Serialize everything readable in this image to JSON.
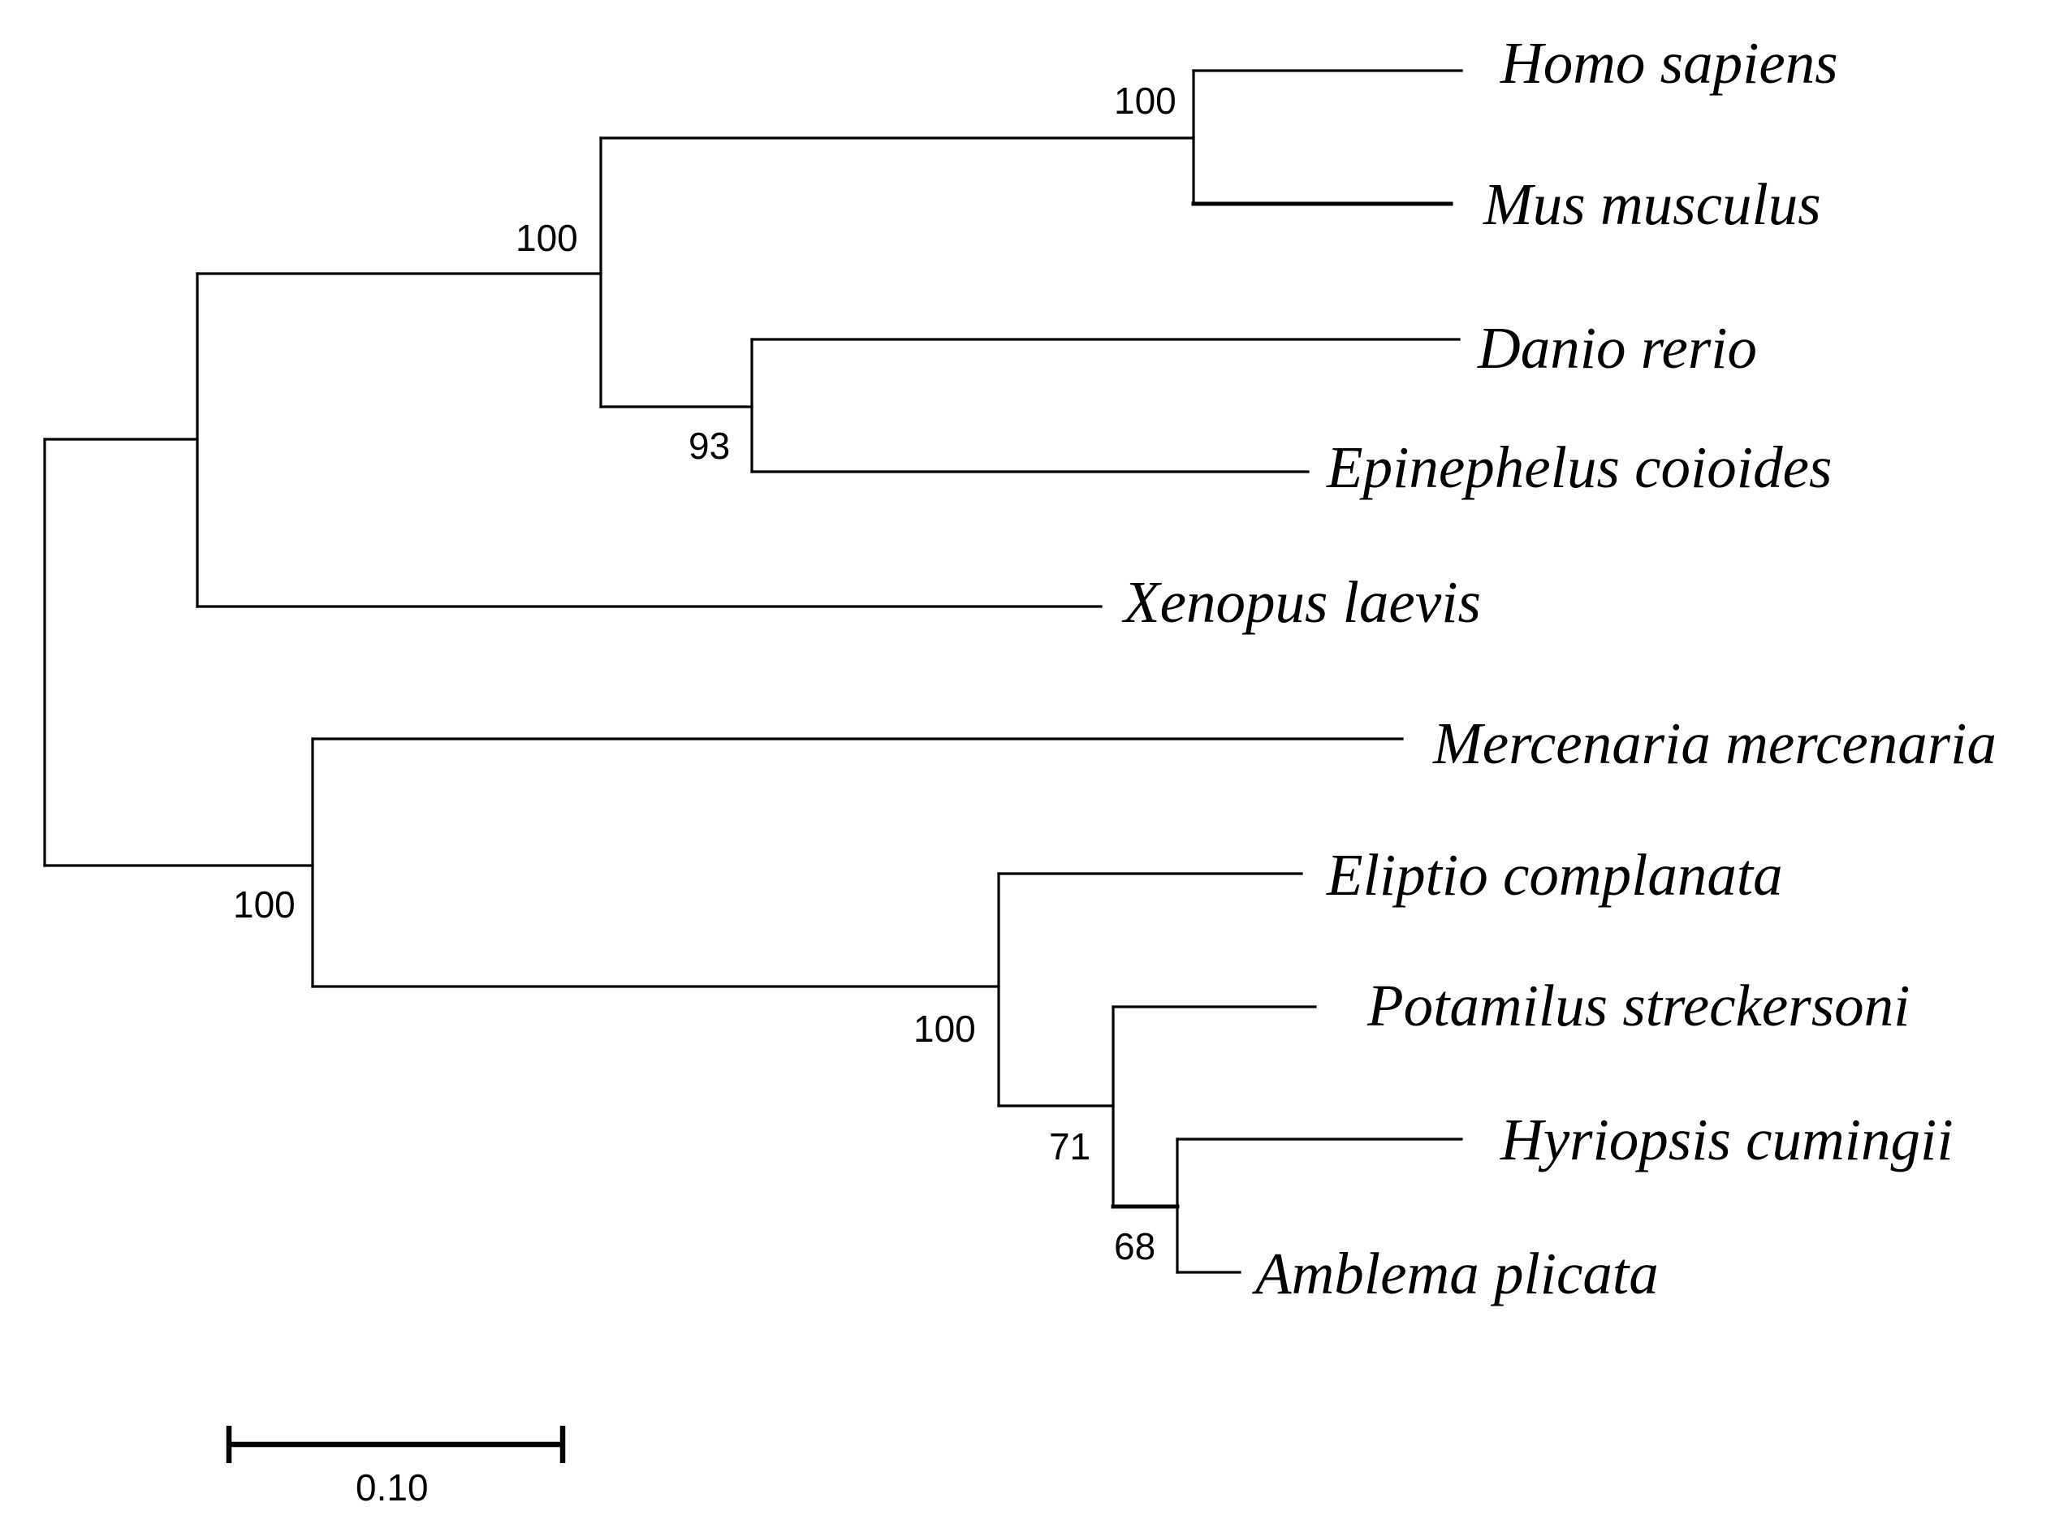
{
  "figure": {
    "type": "phylogenetic_tree",
    "root": {
      "children": [
        {
          "support": "",
          "children": [
            {
              "support": "100",
              "children": [
                {
                  "support": "100",
                  "children": [
                    {
                      "name": "Homo sapiens",
                      "length": 0.08
                    },
                    {
                      "name": "Mus musculus",
                      "length": 0.075
                    }
                  ]
                },
                {
                  "support": "93",
                  "children": [
                    {
                      "name": "Danio rerio",
                      "length": 0.212
                    },
                    {
                      "name": "Epinephelus coioides",
                      "length": 0.165
                    }
                  ]
                }
              ]
            },
            {
              "name": "Xenopus laevis",
              "length": 0.27
            }
          ]
        },
        {
          "support": "100",
          "children": [
            {
              "name": "Mercenaria mercenaria",
              "length": 0.325
            },
            {
              "support": "100",
              "children": [
                {
                  "name": "Eliptio complanata",
                  "length": 0.09
                },
                {
                  "support": "71",
                  "children": [
                    {
                      "name": "Potamilus streckersoni",
                      "length": 0.06
                    },
                    {
                      "support": "68",
                      "children": [
                        {
                          "name": "Hyriopsis cumingii",
                          "length": 0.082
                        },
                        {
                          "name": "Amblema plicata",
                          "length": 0.018
                        }
                      ]
                    }
                  ]
                }
              ]
            }
          ]
        }
      ]
    },
    "taxa": [
      "Homo sapiens",
      "Mus musculus",
      "Danio rerio",
      "Epinephelus coioides",
      "Xenopus laevis",
      "Mercenaria mercenaria",
      "Eliptio complanata",
      "Potamilus streckersoni",
      "Hyriopsis cumingii",
      "Amblema plicata"
    ],
    "bootstrap_values": [
      "100",
      "100",
      "93",
      "100",
      "100",
      "71",
      "68"
    ],
    "scale_bar": {
      "length": 0.1,
      "label": "0.10"
    }
  }
}
